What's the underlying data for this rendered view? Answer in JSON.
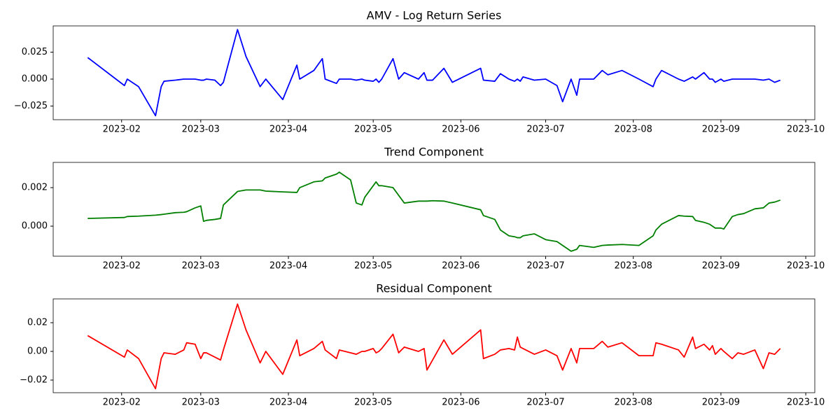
{
  "chart_data": [
    {
      "type": "line",
      "title": "AMV - Log Return Series",
      "x": [
        19,
        32,
        33,
        37,
        43,
        45,
        46,
        50,
        53,
        54,
        57,
        59,
        60,
        61,
        64,
        66,
        67,
        72,
        75,
        80,
        82,
        88,
        93,
        94,
        99,
        102,
        103,
        107,
        108,
        112,
        114,
        116,
        117,
        120,
        121,
        122,
        123,
        127,
        129,
        131,
        136,
        138,
        139,
        141,
        145,
        148,
        158,
        159,
        163,
        165,
        168,
        170,
        171,
        172,
        173,
        177,
        181,
        185,
        187,
        190,
        192,
        193,
        198,
        201,
        203,
        208,
        214,
        219,
        220,
        222,
        228,
        230,
        233,
        234,
        237,
        239,
        240,
        241,
        243,
        244,
        247,
        249,
        251,
        255,
        258,
        260,
        262,
        264
      ],
      "values": [
        0.02,
        -0.006,
        0,
        -0.007,
        -0.034,
        -0.007,
        -0.002,
        -0.001,
        0,
        0,
        0,
        -0.001,
        -0.001,
        0,
        -0.001,
        -0.006,
        -0.003,
        0.046,
        0.021,
        -0.007,
        0,
        -0.019,
        0.013,
        0,
        0.008,
        0.019,
        0,
        -0.004,
        0,
        0,
        -0.001,
        0,
        -0.001,
        -0.002,
        0,
        -0.003,
        0,
        0.019,
        0,
        0.006,
        0,
        0.006,
        -0.001,
        -0.001,
        0.01,
        -0.003,
        0.01,
        -0.001,
        -0.002,
        0.005,
        0,
        -0.002,
        0,
        -0.002,
        0.002,
        -0.001,
        0,
        -0.006,
        -0.021,
        0,
        -0.015,
        0,
        0,
        0.008,
        0.004,
        0.008,
        0,
        -0.007,
        0,
        0.008,
        0,
        -0.002,
        0.002,
        0,
        0.006,
        0,
        0,
        -0.003,
        0,
        -0.002,
        0,
        0,
        0,
        0,
        -0.001,
        0,
        -0.003,
        -0.001
      ],
      "color": "#0000ff",
      "xlim": [
        6.8,
        276.2
      ],
      "xticks": [
        {
          "value": 31,
          "label": "2023-02"
        },
        {
          "value": 59,
          "label": "2023-03"
        },
        {
          "value": 90,
          "label": "2023-04"
        },
        {
          "value": 120,
          "label": "2023-05"
        },
        {
          "value": 151,
          "label": "2023-06"
        },
        {
          "value": 181,
          "label": "2023-07"
        },
        {
          "value": 212,
          "label": "2023-08"
        },
        {
          "value": 243,
          "label": "2023-09"
        },
        {
          "value": 273,
          "label": "2023-10"
        }
      ],
      "ylim": [
        -0.0377,
        0.0494
      ],
      "yticks": [
        {
          "value": -0.025,
          "label": "−0.025"
        },
        {
          "value": 0,
          "label": "0.000"
        },
        {
          "value": 0.025,
          "label": "0.025"
        }
      ]
    },
    {
      "type": "line",
      "title": "Trend Component",
      "x": [
        19,
        32,
        33,
        37,
        43,
        45,
        46,
        50,
        53,
        54,
        57,
        59,
        60,
        61,
        64,
        66,
        67,
        72,
        75,
        80,
        82,
        88,
        93,
        94,
        99,
        102,
        103,
        107,
        108,
        112,
        114,
        116,
        117,
        120,
        121,
        122,
        123,
        127,
        129,
        131,
        136,
        138,
        139,
        141,
        145,
        148,
        158,
        159,
        163,
        165,
        168,
        170,
        171,
        172,
        173,
        177,
        181,
        185,
        187,
        190,
        192,
        193,
        198,
        201,
        203,
        208,
        214,
        219,
        220,
        222,
        228,
        230,
        233,
        234,
        237,
        239,
        240,
        241,
        243,
        244,
        247,
        249,
        251,
        255,
        258,
        260,
        262,
        264
      ],
      "values": [
        0.0004,
        0.00045,
        0.0005,
        0.00052,
        0.00057,
        0.0006,
        0.00062,
        0.0007,
        0.00072,
        0.00075,
        0.00095,
        0.00105,
        0.00025,
        0.0003,
        0.00035,
        0.0004,
        0.0011,
        0.0018,
        0.00188,
        0.00188,
        0.00182,
        0.00178,
        0.00175,
        0.002,
        0.0023,
        0.00235,
        0.0025,
        0.0027,
        0.0028,
        0.0024,
        0.0012,
        0.0011,
        0.0015,
        0.0021,
        0.0023,
        0.0021,
        0.0021,
        0.002,
        0.0016,
        0.0012,
        0.0013,
        0.0013,
        0.0013,
        0.00132,
        0.0013,
        0.0012,
        0.00085,
        0.00055,
        0.00035,
        -0.0002,
        -0.0005,
        -0.00055,
        -0.0006,
        -0.0006,
        -0.0005,
        -0.0004,
        -0.0007,
        -0.0008,
        -0.001,
        -0.0013,
        -0.0012,
        -0.001,
        -0.0011,
        -0.001,
        -0.00098,
        -0.00095,
        -0.001,
        -0.0005,
        -0.0002,
        0.0001,
        0.00055,
        0.00052,
        0.0005,
        0.0003,
        0.0002,
        0.0001,
        0,
        -0.0001,
        -0.0001,
        -0.00015,
        0.0005,
        0.0006,
        0.00065,
        0.0009,
        0.00095,
        0.0012,
        0.00125,
        0.00135
      ],
      "color": "#008000",
      "xlim": [
        6.8,
        276.2
      ],
      "xticks": [
        {
          "value": 31,
          "label": "2023-02"
        },
        {
          "value": 59,
          "label": "2023-03"
        },
        {
          "value": 90,
          "label": "2023-04"
        },
        {
          "value": 120,
          "label": "2023-05"
        },
        {
          "value": 151,
          "label": "2023-06"
        },
        {
          "value": 181,
          "label": "2023-07"
        },
        {
          "value": 212,
          "label": "2023-08"
        },
        {
          "value": 243,
          "label": "2023-09"
        },
        {
          "value": 273,
          "label": "2023-10"
        }
      ],
      "ylim": [
        -0.00156,
        0.00331
      ],
      "yticks": [
        {
          "value": 0,
          "label": "0.000"
        },
        {
          "value": 0.002,
          "label": "0.002"
        }
      ]
    },
    {
      "type": "line",
      "title": "Residual Component",
      "x": [
        19,
        32,
        33,
        37,
        43,
        45,
        46,
        50,
        53,
        54,
        57,
        59,
        60,
        61,
        64,
        66,
        67,
        72,
        75,
        80,
        82,
        88,
        93,
        94,
        99,
        102,
        103,
        107,
        108,
        112,
        114,
        116,
        117,
        120,
        121,
        122,
        123,
        127,
        129,
        131,
        136,
        138,
        139,
        141,
        145,
        148,
        158,
        159,
        163,
        165,
        168,
        170,
        171,
        172,
        173,
        177,
        181,
        185,
        187,
        190,
        192,
        193,
        198,
        201,
        203,
        208,
        214,
        219,
        220,
        222,
        228,
        230,
        233,
        234,
        237,
        239,
        240,
        241,
        243,
        244,
        247,
        249,
        251,
        255,
        258,
        260,
        262,
        264
      ],
      "values": [
        0.011,
        -0.004,
        0.001,
        -0.005,
        -0.026,
        -0.005,
        -0.001,
        -0.002,
        0.001,
        0.006,
        0.005,
        -0.005,
        -0.001,
        -0.001,
        -0.004,
        -0.006,
        0.001,
        0.033,
        0.015,
        -0.008,
        0,
        -0.016,
        0.008,
        -0.003,
        0.002,
        0.007,
        0.001,
        -0.005,
        0.001,
        -0.001,
        -0.002,
        0,
        0,
        0.002,
        -0.001,
        0,
        0.002,
        0.012,
        -0.001,
        0.003,
        0,
        0.002,
        -0.013,
        -0.006,
        0.008,
        -0.002,
        0.015,
        -0.005,
        -0.002,
        0.001,
        0.002,
        0.001,
        0.01,
        0.003,
        0.002,
        -0.002,
        0.001,
        -0.003,
        -0.013,
        0.002,
        -0.008,
        0.002,
        0.002,
        0.007,
        0.003,
        0.006,
        -0.003,
        -0.003,
        0.006,
        0.005,
        0.001,
        -0.004,
        0.01,
        0.002,
        0.005,
        0.001,
        0.004,
        -0.002,
        0.002,
        0,
        -0.005,
        -0.001,
        -0.002,
        0.001,
        -0.012,
        -0.001,
        -0.002,
        0.002
      ],
      "color": "#ff0000",
      "xlim": [
        6.8,
        276.2
      ],
      "xticks": [
        {
          "value": 31,
          "label": "2023-02"
        },
        {
          "value": 59,
          "label": "2023-03"
        },
        {
          "value": 90,
          "label": "2023-04"
        },
        {
          "value": 120,
          "label": "2023-05"
        },
        {
          "value": 151,
          "label": "2023-06"
        },
        {
          "value": 181,
          "label": "2023-07"
        },
        {
          "value": 212,
          "label": "2023-08"
        },
        {
          "value": 243,
          "label": "2023-09"
        },
        {
          "value": 273,
          "label": "2023-10"
        }
      ],
      "ylim": [
        -0.0288,
        0.0366
      ],
      "yticks": [
        {
          "value": -0.02,
          "label": "−0.02"
        },
        {
          "value": 0,
          "label": "0.00"
        },
        {
          "value": 0.02,
          "label": "0.02"
        }
      ]
    }
  ]
}
